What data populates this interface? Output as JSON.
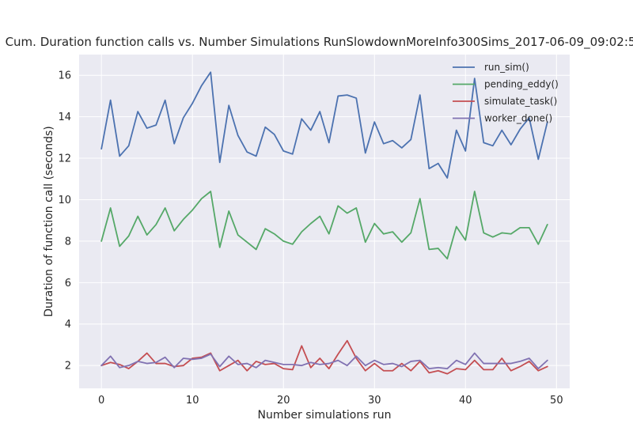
{
  "chart_data": {
    "type": "line",
    "title": "Cum. Duration function calls vs. Number Simulations RunSlowdownMoreInfo300Sims_2017-06-09_09:02:5",
    "xlabel": "Number simulations run",
    "ylabel": "Duration of function call (seconds)",
    "xlim": [
      -2.45,
      51.45
    ],
    "ylim": [
      0.9,
      17.0
    ],
    "xticks": [
      0,
      10,
      20,
      30,
      40,
      50
    ],
    "yticks": [
      2,
      4,
      6,
      8,
      10,
      12,
      14,
      16
    ],
    "grid": true,
    "legend_position": "top-right",
    "x": [
      0,
      1,
      2,
      3,
      4,
      5,
      6,
      7,
      8,
      9,
      10,
      11,
      12,
      13,
      14,
      15,
      16,
      17,
      18,
      19,
      20,
      21,
      22,
      23,
      24,
      25,
      26,
      27,
      28,
      29,
      30,
      31,
      32,
      33,
      34,
      35,
      36,
      37,
      38,
      39,
      40,
      41,
      42,
      43,
      44,
      45,
      46,
      47,
      48,
      49
    ],
    "series": [
      {
        "name": "run_sim()",
        "color": "#4c72b0",
        "values": [
          12.45,
          14.8,
          12.1,
          12.6,
          14.25,
          13.45,
          13.6,
          14.8,
          12.7,
          13.95,
          14.65,
          15.5,
          16.15,
          11.8,
          14.55,
          13.1,
          12.3,
          12.1,
          13.5,
          13.15,
          12.35,
          12.2,
          13.9,
          13.35,
          14.25,
          12.75,
          15.0,
          15.05,
          14.9,
          12.25,
          13.75,
          12.7,
          12.85,
          12.5,
          12.9,
          15.05,
          11.5,
          11.75,
          11.05,
          13.35,
          12.35,
          15.85,
          12.75,
          12.6,
          13.35,
          12.65,
          13.4,
          13.95,
          11.95,
          13.75
        ]
      },
      {
        "name": "pending_eddy()",
        "color": "#55a868",
        "values": [
          8.0,
          9.6,
          7.75,
          8.25,
          9.2,
          8.3,
          8.8,
          9.6,
          8.5,
          9.05,
          9.5,
          10.05,
          10.4,
          7.7,
          9.45,
          8.3,
          7.95,
          7.6,
          8.6,
          8.35,
          8.0,
          7.85,
          8.45,
          8.85,
          9.2,
          8.35,
          9.7,
          9.35,
          9.6,
          7.95,
          8.85,
          8.35,
          8.45,
          7.95,
          8.4,
          10.05,
          7.6,
          7.65,
          7.15,
          8.7,
          8.05,
          10.4,
          8.4,
          8.2,
          8.4,
          8.35,
          8.65,
          8.65,
          7.85,
          8.8
        ]
      },
      {
        "name": "simulate_task()",
        "color": "#c44e52",
        "values": [
          2.0,
          2.15,
          2.05,
          1.85,
          2.2,
          2.6,
          2.1,
          2.1,
          1.95,
          2.0,
          2.35,
          2.4,
          2.6,
          1.75,
          2.0,
          2.25,
          1.75,
          2.2,
          2.05,
          2.1,
          1.85,
          1.8,
          2.95,
          1.9,
          2.35,
          1.85,
          2.55,
          3.2,
          2.35,
          1.75,
          2.1,
          1.75,
          1.75,
          2.1,
          1.75,
          2.2,
          1.65,
          1.75,
          1.6,
          1.85,
          1.8,
          2.25,
          1.8,
          1.8,
          2.35,
          1.75,
          1.95,
          2.2,
          1.75,
          1.95
        ]
      },
      {
        "name": "worker_done()",
        "color": "#8172b2",
        "values": [
          2.0,
          2.45,
          1.9,
          2.0,
          2.2,
          2.1,
          2.15,
          2.4,
          1.9,
          2.35,
          2.3,
          2.35,
          2.55,
          1.95,
          2.45,
          2.05,
          2.1,
          1.9,
          2.25,
          2.15,
          2.05,
          2.05,
          2.0,
          2.15,
          2.05,
          2.1,
          2.25,
          2.0,
          2.45,
          2.0,
          2.25,
          2.05,
          2.1,
          1.95,
          2.2,
          2.25,
          1.85,
          1.9,
          1.85,
          2.25,
          2.05,
          2.6,
          2.1,
          2.1,
          2.1,
          2.1,
          2.2,
          2.35,
          1.85,
          2.25
        ]
      }
    ]
  }
}
